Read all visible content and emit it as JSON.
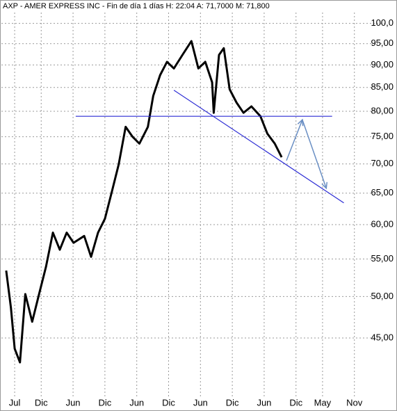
{
  "chart_data": {
    "type": "line",
    "title": "AXP - AMER EXPRESS INC - Fin de día 1 días  H: 22:04  A: 71,7000  M: 71,800",
    "log_scale_y": true,
    "grid": true,
    "xlim": [
      -2.5,
      66
    ],
    "xticks": [
      {
        "value": 0,
        "label": "Jul"
      },
      {
        "value": 5,
        "label": "Dic"
      },
      {
        "value": 11,
        "label": "Jun"
      },
      {
        "value": 17,
        "label": "Dic"
      },
      {
        "value": 23,
        "label": "Jun"
      },
      {
        "value": 29,
        "label": "Dic"
      },
      {
        "value": 35,
        "label": "Jun"
      },
      {
        "value": 41,
        "label": "Dic"
      },
      {
        "value": 47,
        "label": "Jun"
      },
      {
        "value": 53,
        "label": "Dic"
      },
      {
        "value": 58,
        "label": "May"
      },
      {
        "value": 64,
        "label": "Nov"
      }
    ],
    "ylim": [
      38.8,
      102.8
    ],
    "yticks": [
      {
        "value": 100,
        "label": "100,0"
      },
      {
        "value": 95,
        "label": "95,00"
      },
      {
        "value": 90,
        "label": "90,00"
      },
      {
        "value": 85,
        "label": "85,00"
      },
      {
        "value": 80,
        "label": "80,00"
      },
      {
        "value": 75,
        "label": "75,00"
      },
      {
        "value": 70,
        "label": "70,00"
      },
      {
        "value": 65,
        "label": "65,00"
      },
      {
        "value": 60,
        "label": "60,00"
      },
      {
        "value": 55,
        "label": "55,00"
      },
      {
        "value": 50,
        "label": "50,00"
      },
      {
        "value": 45,
        "label": "45,00"
      }
    ],
    "series": [
      {
        "color": "#000000",
        "x": [
          -1.6,
          -0.7,
          0,
          1.0,
          2.0,
          3.3,
          4.6,
          5.9,
          7.2,
          8.5,
          9.8,
          11.1,
          13.1,
          14.4,
          15.7,
          17.0,
          18.3,
          19.6,
          20.9,
          22.2,
          23.5,
          25.1,
          26.1,
          27.4,
          28.7,
          30.0,
          31.6,
          33.3,
          34.6,
          35.9,
          37.2,
          37.5,
          38.5,
          39.4,
          40.5,
          41.8,
          43.1,
          44.6,
          46.3,
          47.6,
          49.0,
          50.3
        ],
        "values": [
          53.4,
          48.6,
          43.8,
          42.3,
          50.3,
          46.9,
          50.3,
          53.9,
          58.8,
          56.3,
          58.8,
          57.3,
          58.3,
          55.3,
          58.8,
          60.9,
          65.2,
          69.9,
          76.9,
          75.0,
          73.7,
          76.9,
          83.2,
          87.7,
          90.7,
          89.2,
          92.3,
          95.6,
          89.2,
          90.7,
          86.1,
          79.7,
          92.3,
          93.9,
          84.6,
          81.8,
          79.7,
          81.0,
          79.0,
          75.6,
          73.7,
          71.2
        ]
      }
    ],
    "annotations": [
      {
        "color": "#2a2ad4",
        "x": [
          11.5,
          59.8
        ],
        "values": [
          79.0,
          79.0
        ]
      },
      {
        "color": "#2a2ad4",
        "x": [
          30.0,
          62.0
        ],
        "values": [
          84.4,
          63.4
        ]
      },
      {
        "color": "#6a8fc4",
        "x": [
          51.2,
          54.2,
          58.7
        ],
        "values": [
          70.6,
          78.3,
          65.8
        ]
      }
    ]
  }
}
